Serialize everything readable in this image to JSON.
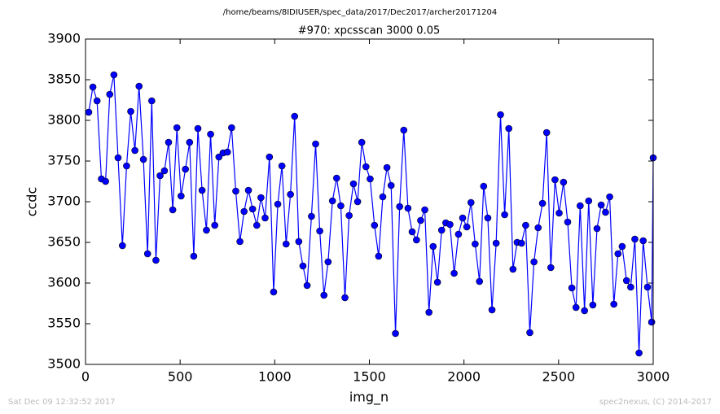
{
  "chart_data": {
    "type": "line",
    "title": "/home/beams/8IDIUSER/spec_data/2017/Dec2017/archer20171204",
    "subtitle": "#970: xpcsscan 3000 0.05",
    "xlabel": "img_n",
    "ylabel": "ccdc",
    "footer_left": "Sat Dec 09 12:32:52 2017",
    "footer_right": "spec2nexus, (C) 2014-2017",
    "xlim": [
      0,
      3000
    ],
    "xticks": [
      0,
      500,
      1000,
      1500,
      2000,
      2500,
      3000
    ],
    "ylim": [
      3500,
      3900
    ],
    "yticks": [
      3500,
      3550,
      3600,
      3650,
      3700,
      3750,
      3800,
      3850,
      3900
    ],
    "grid": false,
    "x": [
      17,
      39,
      61,
      84,
      106,
      128,
      150,
      172,
      195,
      217,
      239,
      261,
      283,
      306,
      328,
      350,
      372,
      394,
      417,
      439,
      461,
      483,
      505,
      528,
      550,
      572,
      594,
      616,
      639,
      661,
      683,
      705,
      727,
      750,
      772,
      794,
      816,
      838,
      861,
      883,
      905,
      927,
      949,
      972,
      994,
      1016,
      1038,
      1060,
      1083,
      1105,
      1127,
      1149,
      1171,
      1194,
      1216,
      1238,
      1260,
      1282,
      1305,
      1327,
      1349,
      1371,
      1393,
      1416,
      1438,
      1460,
      1482,
      1504,
      1527,
      1549,
      1571,
      1593,
      1615,
      1638,
      1660,
      1682,
      1704,
      1726,
      1749,
      1771,
      1793,
      1815,
      1837,
      1860,
      1882,
      1904,
      1926,
      1948,
      1971,
      1993,
      2015,
      2037,
      2059,
      2082,
      2104,
      2126,
      2148,
      2170,
      2193,
      2215,
      2237,
      2259,
      2281,
      2304,
      2326,
      2348,
      2370,
      2392,
      2415,
      2437,
      2459,
      2481,
      2503,
      2526,
      2548,
      2570,
      2592,
      2614,
      2637,
      2659,
      2681,
      2703,
      2725,
      2748,
      2770,
      2792,
      2814,
      2836,
      2859,
      2881,
      2903,
      2925,
      2947,
      2970,
      2992,
      3000
    ],
    "series": [
      {
        "name": "ccdc",
        "color": "#0000ff",
        "values": [
          3810,
          3841,
          3824,
          3728,
          3725,
          3832,
          3856,
          3754,
          3646,
          3744,
          3811,
          3763,
          3842,
          3752,
          3636,
          3824,
          3628,
          3732,
          3738,
          3773,
          3690,
          3791,
          3707,
          3740,
          3773,
          3633,
          3790,
          3714,
          3665,
          3783,
          3671,
          3755,
          3760,
          3761,
          3791,
          3713,
          3651,
          3688,
          3714,
          3691,
          3671,
          3705,
          3680,
          3755,
          3589,
          3697,
          3744,
          3648,
          3709,
          3805,
          3651,
          3621,
          3597,
          3682,
          3771,
          3664,
          3585,
          3626,
          3701,
          3729,
          3695,
          3582,
          3683,
          3722,
          3700,
          3773,
          3743,
          3728,
          3671,
          3633,
          3706,
          3742,
          3720,
          3538,
          3694,
          3788,
          3692,
          3663,
          3653,
          3677,
          3690,
          3564,
          3645,
          3601,
          3665,
          3674,
          3672,
          3612,
          3660,
          3680,
          3669,
          3699,
          3648,
          3602,
          3719,
          3680,
          3567,
          3649,
          3807,
          3684,
          3790,
          3617,
          3650,
          3649,
          3671,
          3539,
          3626,
          3668,
          3698,
          3785,
          3619,
          3727,
          3686,
          3724,
          3675,
          3594,
          3570,
          3695,
          3566,
          3701,
          3573,
          3667,
          3696,
          3687,
          3706,
          3574,
          3636,
          3645,
          3603,
          3595,
          3654,
          3514,
          3652,
          3595,
          3552,
          3754
        ]
      }
    ]
  }
}
